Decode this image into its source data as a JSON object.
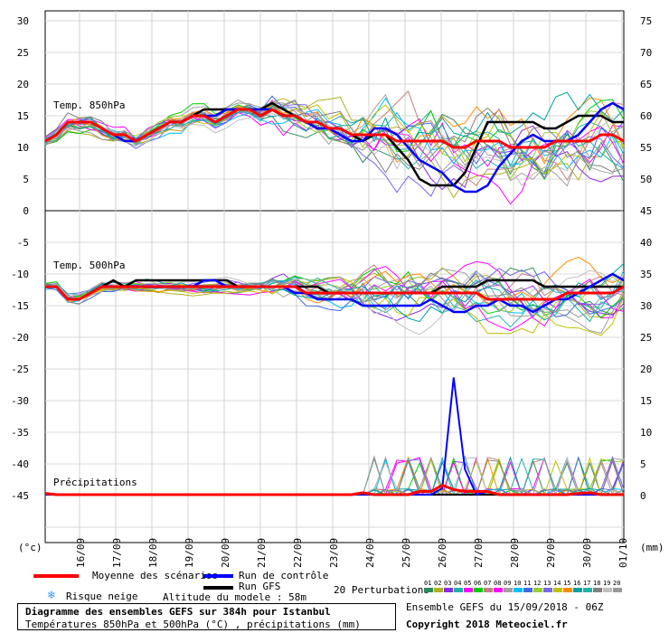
{
  "chart_data": {
    "type": "line",
    "left_axis_ticks": [
      30,
      25,
      20,
      15,
      10,
      5,
      0,
      -5,
      -10,
      -15,
      -20,
      -25,
      -30,
      -35,
      -40,
      -45
    ],
    "right_axis_ticks": [
      75,
      70,
      65,
      60,
      55,
      50,
      45,
      40,
      35,
      30,
      25,
      20,
      15,
      10,
      5,
      0
    ],
    "left_unit": "(°c)",
    "right_unit": "(mm)",
    "date_labels": [
      "16/09",
      "17/09",
      "18/09",
      "19/09",
      "20/09",
      "21/09",
      "22/09",
      "23/09",
      "24/09",
      "25/09",
      "26/09",
      "27/09",
      "28/09",
      "29/09",
      "30/09",
      "01/10"
    ],
    "panels": [
      {
        "label": "Temp. 850hPa",
        "y_range_left": [
          0,
          30
        ],
        "y_range_right": [
          45,
          75
        ]
      },
      {
        "label": "Temp. 500hPa",
        "y_range_left": [
          -45,
          -5
        ],
        "y_range_right": [
          0,
          40
        ]
      },
      {
        "label": "Précipitations"
      }
    ],
    "mean_850": [
      11,
      12,
      14,
      14,
      14,
      13,
      12,
      12,
      11,
      12,
      13,
      14,
      14,
      15,
      15,
      14,
      15,
      16,
      16,
      15,
      16,
      15,
      15,
      14,
      14,
      13,
      13,
      12,
      12,
      12,
      12,
      11,
      11,
      11,
      11,
      11,
      10,
      10,
      11,
      11,
      11,
      10,
      10,
      10,
      10,
      11,
      11,
      11,
      11,
      12,
      12,
      11
    ],
    "control_850": [
      11,
      12,
      14,
      14,
      14,
      13,
      12,
      11,
      11,
      12,
      13,
      14,
      14,
      15,
      15,
      15,
      16,
      16,
      16,
      16,
      16,
      15,
      15,
      14,
      13,
      13,
      12,
      11,
      11,
      13,
      13,
      12,
      10,
      8,
      7,
      6,
      4,
      3,
      3,
      4,
      7,
      9,
      11,
      12,
      11,
      11,
      11,
      12,
      14,
      16,
      17,
      16
    ],
    "gfs_850": [
      11,
      12,
      14,
      14,
      14,
      13,
      12,
      12,
      11,
      12,
      13,
      14,
      14,
      15,
      16,
      16,
      16,
      16,
      16,
      16,
      17,
      16,
      15,
      14,
      13,
      13,
      13,
      12,
      11,
      12,
      12,
      10,
      8,
      5,
      4,
      4,
      4,
      6,
      10,
      14,
      14,
      14,
      14,
      14,
      13,
      13,
      14,
      15,
      15,
      15,
      14,
      14
    ],
    "mean_500": [
      -12,
      -12,
      -14,
      -14,
      -13,
      -12,
      -12,
      -12,
      -12,
      -12,
      -12,
      -12,
      -12,
      -12,
      -12,
      -12,
      -12,
      -12,
      -12,
      -12,
      -12,
      -12,
      -12,
      -13,
      -13,
      -13,
      -13,
      -13,
      -13,
      -13,
      -13,
      -13,
      -13,
      -13,
      -13,
      -13,
      -13,
      -13,
      -13,
      -14,
      -14,
      -14,
      -14,
      -14,
      -14,
      -14,
      -13,
      -13,
      -13,
      -13,
      -13,
      -12
    ],
    "control_500": [
      -12,
      -12,
      -14,
      -14,
      -13,
      -12,
      -12,
      -12,
      -12,
      -12,
      -12,
      -12,
      -12,
      -12,
      -11,
      -11,
      -12,
      -12,
      -12,
      -12,
      -12,
      -12,
      -13,
      -13,
      -14,
      -14,
      -14,
      -14,
      -15,
      -15,
      -15,
      -15,
      -15,
      -15,
      -14,
      -15,
      -16,
      -16,
      -15,
      -15,
      -14,
      -15,
      -15,
      -16,
      -15,
      -14,
      -14,
      -13,
      -12,
      -11,
      -10,
      -11
    ],
    "gfs_500": [
      -12,
      -12,
      -14,
      -14,
      -13,
      -12,
      -11,
      -12,
      -11,
      -11,
      -11,
      -11,
      -11,
      -11,
      -11,
      -11,
      -11,
      -12,
      -12,
      -12,
      -12,
      -12,
      -12,
      -12,
      -12,
      -13,
      -13,
      -13,
      -13,
      -13,
      -13,
      -13,
      -13,
      -13,
      -13,
      -12,
      -12,
      -12,
      -12,
      -11,
      -11,
      -11,
      -11,
      -11,
      -12,
      -12,
      -12,
      -12,
      -12,
      -12,
      -12,
      -12
    ],
    "mean_precip": [
      0.2,
      0,
      0,
      0,
      0,
      0,
      0,
      0,
      0,
      0,
      0,
      0,
      0,
      0,
      0,
      0,
      0,
      0,
      0,
      0,
      0,
      0,
      0,
      0,
      0,
      0,
      0,
      0,
      0.3,
      0,
      0,
      0,
      0,
      0.5,
      0.5,
      1.5,
      0.8,
      0.5,
      0.5,
      0.5,
      0,
      0,
      0,
      0,
      0,
      0,
      0,
      0.2,
      0.3,
      0,
      0,
      0
    ],
    "control_precip": [
      0,
      0,
      0,
      0,
      0,
      0,
      0,
      0,
      0,
      0,
      0,
      0,
      0,
      0,
      0,
      0,
      0,
      0,
      0,
      0,
      0,
      0,
      0,
      0,
      0,
      0,
      0,
      0,
      0,
      0,
      0,
      0,
      0,
      0,
      0,
      1,
      18.5,
      4,
      0,
      0.5,
      0,
      0,
      0,
      0,
      0,
      0,
      0,
      0,
      0,
      0,
      0,
      0
    ],
    "gfs_precip": [
      0,
      0,
      0,
      0,
      0,
      0,
      0,
      0,
      0,
      0,
      0,
      0,
      0,
      0,
      0,
      0,
      0,
      0,
      0,
      0,
      0,
      0,
      0,
      0,
      0,
      0,
      0,
      0,
      0,
      0,
      0,
      0,
      0,
      0,
      0,
      0,
      0,
      0,
      0,
      0,
      0,
      0,
      0,
      0,
      0,
      0,
      0,
      0,
      0,
      0,
      0,
      0
    ],
    "perturbation_count": 20,
    "perturbation_labels": [
      "01",
      "02",
      "03",
      "04",
      "05",
      "06",
      "07",
      "08",
      "09",
      "10",
      "11",
      "12",
      "13",
      "14",
      "15",
      "16",
      "17",
      "18",
      "19",
      "20"
    ],
    "perturbation_colors": [
      "#2e8b57",
      "#b0b020",
      "#8a2be2",
      "#20b2aa",
      "#ff00ff",
      "#00cc00",
      "#c08080",
      "#ff00ff",
      "#a0a0a0",
      "#00bfff",
      "#4169e1",
      "#9acd32",
      "#7b68ee",
      "#c0c000",
      "#ff8c00",
      "#00a0a0",
      "#20b2aa",
      "#808080",
      "#c0c0c0",
      "#999999"
    ],
    "series_colors": {
      "mean": "#ff0000",
      "control": "#0000ff",
      "gfs": "#000000"
    }
  },
  "legend": {
    "mean": "Moyenne des scénarios",
    "control": "Run de contrôle",
    "gfs": "Run GFS",
    "snow": "Risque neige",
    "altitude": "Altitude du modele : 58m",
    "perturbations": "20 Perturbations"
  },
  "footer": {
    "title": "Diagramme des ensembles GEFS sur 384h pour Istanbul",
    "subtitle": "Températures 850hPa et 500hPa (°C) , précipitations (mm)",
    "run": "Ensemble GEFS du 15/09/2018 - 06Z",
    "copyright": "Copyright 2018 Meteociel.fr"
  }
}
